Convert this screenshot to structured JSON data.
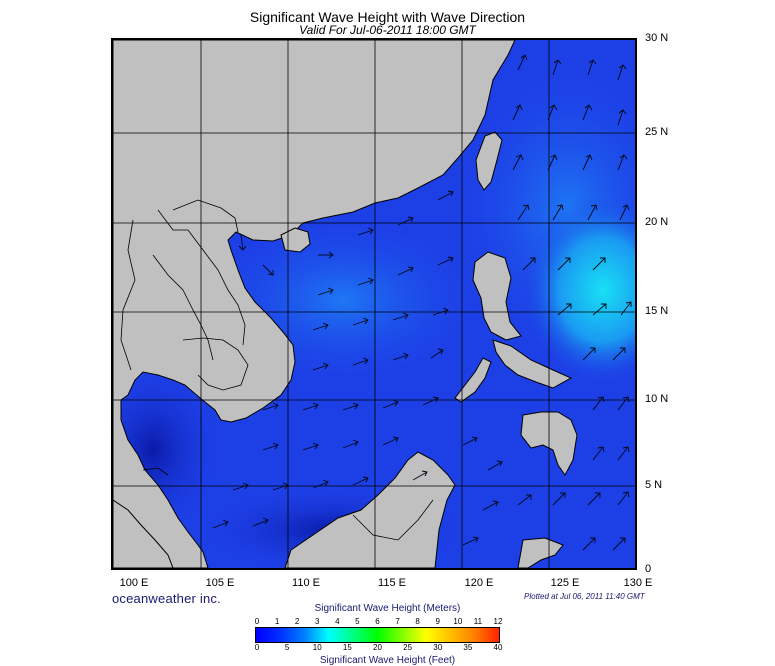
{
  "title": "Significant Wave Height with Wave Direction",
  "subtitle": "Valid For Jul-06-2011 18:00 GMT",
  "logo": "oceanweather inc.",
  "plotted": "Plotted at Jul 06, 2011 11:40 GMT",
  "colorbar": {
    "title": "Significant Wave Height (Meters)",
    "bottom_label": "Significant Wave Height (Feet)",
    "meter_ticks": [
      "0",
      "1",
      "2",
      "3",
      "4",
      "5",
      "6",
      "7",
      "8",
      "9",
      "10",
      "11",
      "12"
    ],
    "feet_ticks": [
      "0",
      "5",
      "10",
      "15",
      "20",
      "25",
      "30",
      "35",
      "40"
    ]
  },
  "lat_labels": [
    "30 N",
    "25 N",
    "20 N",
    "15 N",
    "10 N",
    "5 N",
    "0"
  ],
  "lon_labels": [
    "100 E",
    "105 E",
    "110 E",
    "115 E",
    "120 E",
    "125 E",
    "130 E"
  ],
  "colors": {
    "land": "#c0c0c0",
    "sea": "#1d3fe6",
    "sea_light": "#1e7cf5",
    "highwave": "#19d6f0"
  }
}
